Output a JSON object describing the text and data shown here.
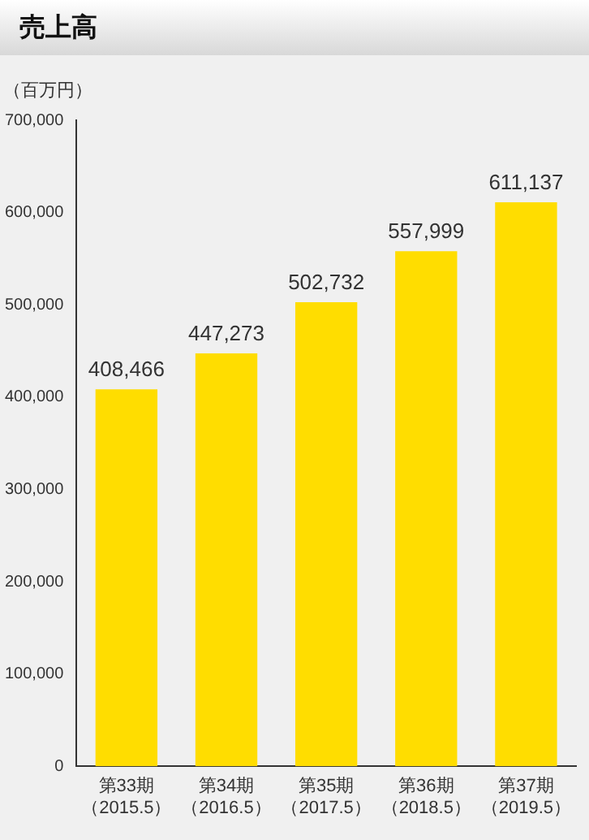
{
  "chart_data": {
    "type": "bar",
    "title": "売上高",
    "ylabel": "（百万円）",
    "categories": [
      "第33期（2015.5）",
      "第34期（2016.5）",
      "第35期（2017.5）",
      "第36期（2018.5）",
      "第37期（2019.5）"
    ],
    "values": [
      408466,
      447273,
      502732,
      557999,
      611137
    ],
    "value_labels": [
      "408,466",
      "447,273",
      "502,732",
      "557,999",
      "611,137"
    ],
    "color": "#ffdd00",
    "ylim": [
      0,
      700000
    ],
    "yticks": [
      {
        "value": 0,
        "label": "0"
      },
      {
        "value": 100000,
        "label": "100,000"
      },
      {
        "value": 200000,
        "label": "200,000"
      },
      {
        "value": 300000,
        "label": "300,000"
      },
      {
        "value": 400000,
        "label": "400,000"
      },
      {
        "value": 500000,
        "label": "500,000"
      },
      {
        "value": 600000,
        "label": "600,000"
      },
      {
        "value": 700000,
        "label": "700,000"
      }
    ],
    "grid": false,
    "legend": false
  }
}
